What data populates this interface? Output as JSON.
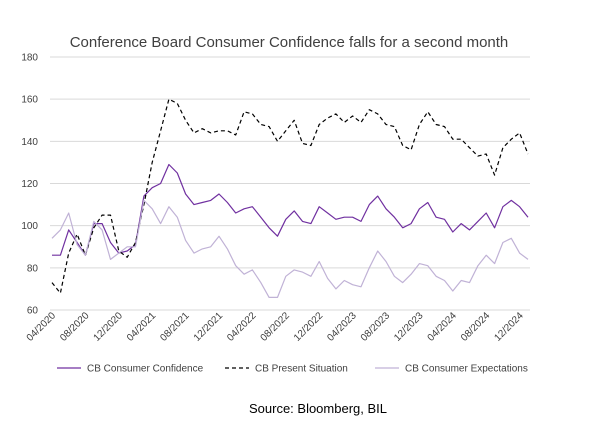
{
  "source_text": "Source: Bloomberg, BIL",
  "chart_data": {
    "type": "line",
    "title": "Conference Board Consumer Confidence falls for a second month",
    "ylim": [
      60,
      180
    ],
    "yticks": [
      60,
      80,
      100,
      120,
      140,
      160,
      180
    ],
    "grid": "horizontal",
    "legend_position": "bottom",
    "x_tick_labels": [
      "04/2020",
      "08/2020",
      "12/2020",
      "04/2021",
      "08/2021",
      "12/2021",
      "04/2022",
      "08/2022",
      "12/2022",
      "04/2023",
      "08/2023",
      "12/2023",
      "04/2024",
      "08/2024",
      "12/2024"
    ],
    "x_tick_every": 4,
    "x": [
      "04/2020",
      "05/2020",
      "06/2020",
      "07/2020",
      "08/2020",
      "09/2020",
      "10/2020",
      "11/2020",
      "12/2020",
      "01/2021",
      "02/2021",
      "03/2021",
      "04/2021",
      "05/2021",
      "06/2021",
      "07/2021",
      "08/2021",
      "09/2021",
      "10/2021",
      "11/2021",
      "12/2021",
      "01/2022",
      "02/2022",
      "03/2022",
      "04/2022",
      "05/2022",
      "06/2022",
      "07/2022",
      "08/2022",
      "09/2022",
      "10/2022",
      "11/2022",
      "12/2022",
      "01/2023",
      "02/2023",
      "03/2023",
      "04/2023",
      "05/2023",
      "06/2023",
      "07/2023",
      "08/2023",
      "09/2023",
      "10/2023",
      "11/2023",
      "12/2023",
      "01/2024",
      "02/2024",
      "03/2024",
      "04/2024",
      "05/2024",
      "06/2024",
      "07/2024",
      "08/2024",
      "09/2024",
      "10/2024",
      "11/2024",
      "12/2024",
      "01/2025"
    ],
    "series": [
      {
        "name": "CB Consumer Confidence",
        "color": "#7030a0",
        "dash": "solid",
        "values": [
          86,
          86,
          98,
          92,
          86,
          101,
          101,
          92,
          87,
          88,
          91,
          114,
          118,
          120,
          129,
          125,
          115,
          110,
          111,
          112,
          115,
          111,
          106,
          108,
          109,
          104,
          99,
          95,
          103,
          107,
          102,
          101,
          109,
          106,
          103,
          104,
          104,
          102,
          110,
          114,
          108,
          104,
          99,
          101,
          108,
          111,
          104,
          103,
          97,
          101,
          98,
          102,
          106,
          99,
          109,
          112,
          109,
          104
        ]
      },
      {
        "name": "CB Present Situation",
        "color": "#000000",
        "dash": "dashed",
        "values": [
          73,
          68,
          87,
          96,
          86,
          99,
          105,
          105,
          88,
          85,
          92,
          110,
          130,
          145,
          160,
          158,
          150,
          144,
          146,
          144,
          145,
          145,
          143,
          154,
          153,
          148,
          147,
          140,
          145,
          150,
          139,
          138,
          148,
          151,
          153,
          149,
          152,
          149,
          155,
          153,
          148,
          147,
          138,
          136,
          148,
          154,
          148,
          147,
          141,
          141,
          137,
          133,
          134,
          124,
          137,
          141,
          144,
          134
        ]
      },
      {
        "name": "CB Consumer  Expectations",
        "color": "#c0b2d6",
        "dash": "solid",
        "values": [
          94,
          98,
          106,
          91,
          86,
          102,
          98,
          84,
          87,
          90,
          90,
          112,
          108,
          101,
          109,
          104,
          93,
          87,
          89,
          90,
          95,
          89,
          81,
          77,
          79,
          73,
          66,
          66,
          76,
          79,
          78,
          76,
          83,
          75,
          70,
          74,
          72,
          71,
          80,
          88,
          83,
          76,
          73,
          77,
          82,
          81,
          76,
          74,
          69,
          74,
          73,
          81,
          86,
          82,
          92,
          94,
          87,
          84
        ]
      }
    ]
  }
}
